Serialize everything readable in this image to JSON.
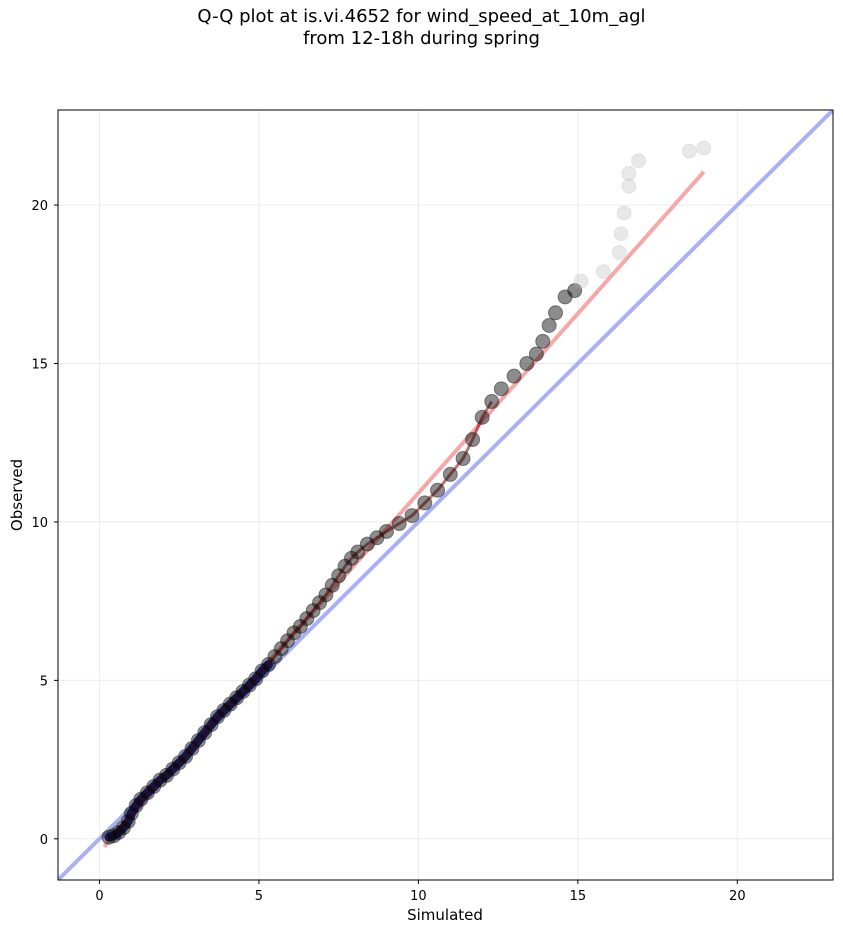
{
  "chart_data": {
    "type": "scatter",
    "title_lines": [
      "Q-Q plot at is.vi.4652 for wind_speed_at_10m_agl",
      "from 12-18h during spring"
    ],
    "xlabel": "Simulated",
    "ylabel": "Observed",
    "xlim": [
      -1.3,
      23.0
    ],
    "ylim": [
      -1.3,
      23.0
    ],
    "xticks": [
      0,
      5,
      10,
      15,
      20
    ],
    "yticks": [
      0,
      5,
      10,
      15,
      20
    ],
    "grid": true,
    "colors": {
      "points": "#000000",
      "outlier_points": "#bdbdbd",
      "identity_line": "#aab0f2",
      "fit_line": "#f4a8a8",
      "dense_core_line": "#0a1a8c",
      "dense_core_overlay": "#8b0000",
      "grid": "#ebebeb"
    },
    "identity_line": {
      "x": [
        -1.3,
        23.0
      ],
      "y": [
        -1.3,
        23.0
      ]
    },
    "fit_line": {
      "x": [
        0.15,
        18.95
      ],
      "y": [
        -0.25,
        21.05
      ]
    },
    "series": [
      {
        "points": [
          {
            "x": 0.3,
            "y": 0.05
          },
          {
            "x": 0.45,
            "y": 0.1
          },
          {
            "x": 0.6,
            "y": 0.2
          },
          {
            "x": 0.75,
            "y": 0.35
          },
          {
            "x": 0.9,
            "y": 0.55
          },
          {
            "x": 1.0,
            "y": 0.8
          },
          {
            "x": 1.15,
            "y": 1.05
          },
          {
            "x": 1.3,
            "y": 1.25
          },
          {
            "x": 1.5,
            "y": 1.45
          },
          {
            "x": 1.7,
            "y": 1.65
          },
          {
            "x": 1.9,
            "y": 1.85
          },
          {
            "x": 2.1,
            "y": 2.0
          },
          {
            "x": 2.3,
            "y": 2.2
          },
          {
            "x": 2.5,
            "y": 2.4
          },
          {
            "x": 2.7,
            "y": 2.6
          },
          {
            "x": 2.9,
            "y": 2.85
          },
          {
            "x": 3.1,
            "y": 3.1
          },
          {
            "x": 3.3,
            "y": 3.35
          },
          {
            "x": 3.5,
            "y": 3.6
          },
          {
            "x": 3.7,
            "y": 3.85
          },
          {
            "x": 3.9,
            "y": 4.05
          },
          {
            "x": 4.1,
            "y": 4.25
          },
          {
            "x": 4.3,
            "y": 4.45
          },
          {
            "x": 4.5,
            "y": 4.65
          },
          {
            "x": 4.7,
            "y": 4.85
          },
          {
            "x": 4.9,
            "y": 5.05
          },
          {
            "x": 5.1,
            "y": 5.3
          },
          {
            "x": 5.3,
            "y": 5.5
          },
          {
            "x": 5.5,
            "y": 5.75
          },
          {
            "x": 5.7,
            "y": 6.0
          },
          {
            "x": 5.9,
            "y": 6.25
          },
          {
            "x": 6.1,
            "y": 6.5
          },
          {
            "x": 6.3,
            "y": 6.7
          },
          {
            "x": 6.5,
            "y": 6.95
          },
          {
            "x": 6.7,
            "y": 7.2
          },
          {
            "x": 6.9,
            "y": 7.45
          },
          {
            "x": 7.1,
            "y": 7.7
          },
          {
            "x": 7.3,
            "y": 8.0
          },
          {
            "x": 7.5,
            "y": 8.3
          },
          {
            "x": 7.7,
            "y": 8.6
          },
          {
            "x": 7.9,
            "y": 8.85
          },
          {
            "x": 8.1,
            "y": 9.05
          },
          {
            "x": 8.4,
            "y": 9.3
          },
          {
            "x": 8.7,
            "y": 9.5
          },
          {
            "x": 9.0,
            "y": 9.7
          },
          {
            "x": 9.4,
            "y": 9.95
          },
          {
            "x": 9.8,
            "y": 10.2
          },
          {
            "x": 10.2,
            "y": 10.6
          },
          {
            "x": 10.6,
            "y": 11.0
          },
          {
            "x": 11.0,
            "y": 11.5
          },
          {
            "x": 11.4,
            "y": 12.0
          },
          {
            "x": 11.7,
            "y": 12.6
          },
          {
            "x": 12.0,
            "y": 13.3
          },
          {
            "x": 12.3,
            "y": 13.8
          },
          {
            "x": 12.6,
            "y": 14.2
          },
          {
            "x": 13.0,
            "y": 14.6
          },
          {
            "x": 13.4,
            "y": 15.0
          },
          {
            "x": 13.7,
            "y": 15.3
          },
          {
            "x": 13.9,
            "y": 15.7
          },
          {
            "x": 14.1,
            "y": 16.2
          },
          {
            "x": 14.3,
            "y": 16.6
          },
          {
            "x": 14.6,
            "y": 17.1
          },
          {
            "x": 14.9,
            "y": 17.3
          },
          {
            "x": 15.1,
            "y": 17.6
          },
          {
            "x": 15.8,
            "y": 17.9
          },
          {
            "x": 16.3,
            "y": 18.5
          },
          {
            "x": 16.35,
            "y": 19.1
          },
          {
            "x": 16.45,
            "y": 19.75
          },
          {
            "x": 16.6,
            "y": 20.6
          },
          {
            "x": 16.6,
            "y": 21.0
          },
          {
            "x": 16.9,
            "y": 21.4
          },
          {
            "x": 18.5,
            "y": 21.7
          },
          {
            "x": 18.95,
            "y": 21.8
          }
        ]
      }
    ]
  }
}
